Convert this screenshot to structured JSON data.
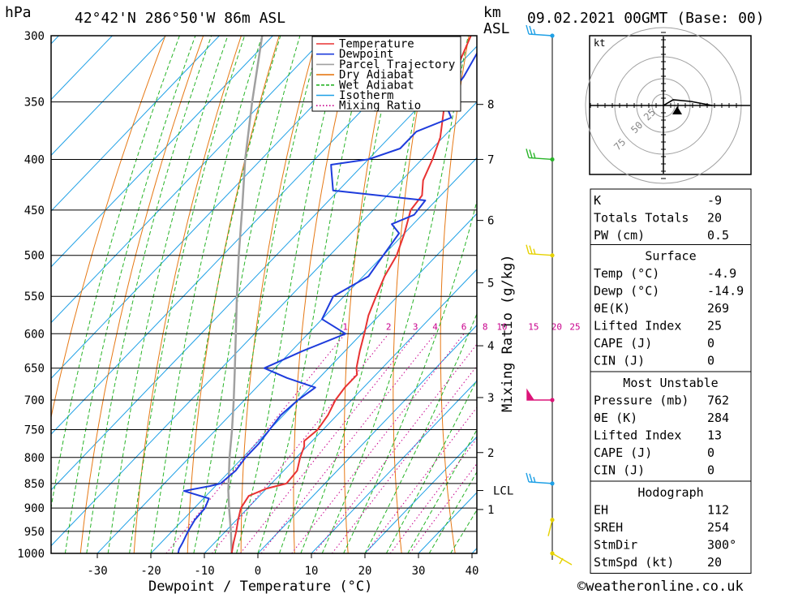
{
  "header": {
    "left_unit": "hPa",
    "location": "42°42'N 286°50'W 86m ASL",
    "km_label": "km",
    "asl_label": "ASL",
    "datetime": "09.02.2021 00GMT (Base: 00)"
  },
  "copyright": "©weatheronline.co.uk",
  "chart_data": {
    "type": "skewt",
    "xlabel": "Dewpoint / Temperature (°C)",
    "ylabel_right": "Mixing Ratio (g/kg)",
    "x_ticks": [
      -30,
      -20,
      -10,
      0,
      10,
      20,
      30,
      40
    ],
    "x_tick_labels": [
      "-30",
      "-20",
      "-10",
      "0",
      "10",
      "20",
      "30",
      "40"
    ],
    "pressure_levels": [
      300,
      350,
      400,
      450,
      500,
      550,
      600,
      650,
      700,
      750,
      800,
      850,
      900,
      950,
      1000
    ],
    "pressure_labels": [
      "300",
      "350",
      "400",
      "450",
      "500",
      "550",
      "600",
      "650",
      "700",
      "750",
      "800",
      "850",
      "900",
      "950",
      "1000"
    ],
    "height_km": [
      {
        "p": 352,
        "label": "8"
      },
      {
        "p": 400,
        "label": "7"
      },
      {
        "p": 461,
        "label": "6"
      },
      {
        "p": 533,
        "label": "5"
      },
      {
        "p": 617,
        "label": "4"
      },
      {
        "p": 696,
        "label": "3"
      },
      {
        "p": 791,
        "label": "2"
      },
      {
        "p": 864,
        "label": "LCL"
      },
      {
        "p": 903,
        "label": "1"
      }
    ],
    "mixing_ratio_labels": [
      "1",
      "2",
      "3",
      "4",
      "6",
      "8",
      "10",
      "15",
      "20",
      "25"
    ],
    "mixing_ratio_values": [
      1,
      2,
      3,
      4,
      6,
      8,
      10,
      15,
      20,
      25
    ],
    "legend": [
      {
        "name": "Temperature",
        "color": "#e83232",
        "style": "solid"
      },
      {
        "name": "Dewpoint",
        "color": "#1e3cdc",
        "style": "solid"
      },
      {
        "name": "Parcel Trajectory",
        "color": "#a0a0a0",
        "style": "solid"
      },
      {
        "name": "Dry Adiabat",
        "color": "#e67814",
        "style": "solid"
      },
      {
        "name": "Wet Adiabat",
        "color": "#28b428",
        "style": "dashed"
      },
      {
        "name": "Isotherm",
        "color": "#1ea0e6",
        "style": "solid"
      },
      {
        "name": "Mixing Ratio",
        "color": "#c8008c",
        "style": "dotted"
      }
    ],
    "series": [
      {
        "name": "Temperature",
        "points": [
          {
            "p": 1000,
            "t": -4.9
          },
          {
            "p": 975,
            "t": -6.5
          },
          {
            "p": 950,
            "t": -8
          },
          {
            "p": 925,
            "t": -9.7
          },
          {
            "p": 900,
            "t": -11.3
          },
          {
            "p": 875,
            "t": -12
          },
          {
            "p": 860,
            "t": -10
          },
          {
            "p": 850,
            "t": -7.2
          },
          {
            "p": 825,
            "t": -7.5
          },
          {
            "p": 800,
            "t": -9.3
          },
          {
            "p": 780,
            "t": -10.5
          },
          {
            "p": 770,
            "t": -11.5
          },
          {
            "p": 750,
            "t": -11
          },
          {
            "p": 725,
            "t": -11.7
          },
          {
            "p": 700,
            "t": -13
          },
          {
            "p": 680,
            "t": -13.5
          },
          {
            "p": 660,
            "t": -13.5
          },
          {
            "p": 650,
            "t": -14.8
          },
          {
            "p": 625,
            "t": -17.2
          },
          {
            "p": 600,
            "t": -19.5
          },
          {
            "p": 575,
            "t": -22
          },
          {
            "p": 550,
            "t": -24
          },
          {
            "p": 525,
            "t": -26
          },
          {
            "p": 500,
            "t": -27.5
          },
          {
            "p": 475,
            "t": -30
          },
          {
            "p": 450,
            "t": -33
          },
          {
            "p": 435,
            "t": -33.5
          },
          {
            "p": 420,
            "t": -36
          },
          {
            "p": 400,
            "t": -38
          },
          {
            "p": 380,
            "t": -40.5
          },
          {
            "p": 350,
            "t": -46
          },
          {
            "p": 330,
            "t": -49
          },
          {
            "p": 300,
            "t": -53
          }
        ]
      },
      {
        "name": "Dewpoint",
        "points": [
          {
            "p": 1000,
            "t": -14.9
          },
          {
            "p": 990,
            "t": -15.5
          },
          {
            "p": 975,
            "t": -16
          },
          {
            "p": 950,
            "t": -17
          },
          {
            "p": 925,
            "t": -17.8
          },
          {
            "p": 900,
            "t": -18
          },
          {
            "p": 880,
            "t": -19
          },
          {
            "p": 865,
            "t": -25
          },
          {
            "p": 855,
            "t": -21
          },
          {
            "p": 850,
            "t": -19.5
          },
          {
            "p": 825,
            "t": -19
          },
          {
            "p": 800,
            "t": -19.5
          },
          {
            "p": 775,
            "t": -19.5
          },
          {
            "p": 750,
            "t": -20
          },
          {
            "p": 725,
            "t": -20.5
          },
          {
            "p": 700,
            "t": -20
          },
          {
            "p": 680,
            "t": -19
          },
          {
            "p": 665,
            "t": -26
          },
          {
            "p": 650,
            "t": -32
          },
          {
            "p": 625,
            "t": -28
          },
          {
            "p": 600,
            "t": -23
          },
          {
            "p": 580,
            "t": -30
          },
          {
            "p": 550,
            "t": -32
          },
          {
            "p": 525,
            "t": -29
          },
          {
            "p": 500,
            "t": -30
          },
          {
            "p": 475,
            "t": -31
          },
          {
            "p": 465,
            "t": -34
          },
          {
            "p": 455,
            "t": -31.5
          },
          {
            "p": 440,
            "t": -32
          },
          {
            "p": 430,
            "t": -51
          },
          {
            "p": 410,
            "t": -55
          },
          {
            "p": 405,
            "t": -56
          },
          {
            "p": 400,
            "t": -50
          },
          {
            "p": 390,
            "t": -46
          },
          {
            "p": 375,
            "t": -46
          },
          {
            "p": 363,
            "t": -42
          },
          {
            "p": 350,
            "t": -46
          },
          {
            "p": 330,
            "t": -47
          },
          {
            "p": 300,
            "t": -50
          }
        ]
      },
      {
        "name": "Parcel Trajectory",
        "points": [
          {
            "p": 1000,
            "t": -4.9
          },
          {
            "p": 950,
            "t": -9
          },
          {
            "p": 900,
            "t": -13.5
          },
          {
            "p": 864,
            "t": -16.8
          },
          {
            "p": 850,
            "t": -18
          },
          {
            "p": 800,
            "t": -22.5
          },
          {
            "p": 750,
            "t": -27
          },
          {
            "p": 700,
            "t": -32
          },
          {
            "p": 650,
            "t": -37.5
          },
          {
            "p": 600,
            "t": -43.5
          },
          {
            "p": 550,
            "t": -50
          },
          {
            "p": 500,
            "t": -57
          },
          {
            "p": 450,
            "t": -64.5
          },
          {
            "p": 400,
            "t": -73
          },
          {
            "p": 350,
            "t": -82
          },
          {
            "p": 300,
            "t": -92
          }
        ]
      }
    ],
    "wind_barbs": [
      {
        "p": 300,
        "color": "#1ea0e6"
      },
      {
        "p": 400,
        "color": "#28b428"
      },
      {
        "p": 500,
        "color": "#e6d200"
      },
      {
        "p": 700,
        "color": "#dc1478"
      },
      {
        "p": 850,
        "color": "#1ea0e6"
      },
      {
        "p": 925,
        "color": "#e6d200"
      },
      {
        "p": 1000,
        "color": "#e6d200"
      }
    ],
    "hodograph": {
      "unit": "kt",
      "rings": [
        "25",
        "50",
        "75"
      ]
    }
  },
  "indices": {
    "top": [
      {
        "label": "K",
        "value": "-9"
      },
      {
        "label": "Totals Totals",
        "value": "20"
      },
      {
        "label": "PW (cm)",
        "value": "0.5"
      }
    ],
    "surface": {
      "title": "Surface",
      "rows": [
        {
          "label": "Temp (°C)",
          "value": "-4.9"
        },
        {
          "label": "Dewp (°C)",
          "value": "-14.9"
        },
        {
          "label": "θE(K)",
          "value": "269"
        },
        {
          "label": "Lifted Index",
          "value": "25"
        },
        {
          "label": "CAPE (J)",
          "value": "0"
        },
        {
          "label": "CIN (J)",
          "value": "0"
        }
      ]
    },
    "most_unstable": {
      "title": "Most Unstable",
      "rows": [
        {
          "label": "Pressure (mb)",
          "value": "762"
        },
        {
          "label": "θE (K)",
          "value": "284"
        },
        {
          "label": "Lifted Index",
          "value": "13"
        },
        {
          "label": "CAPE (J)",
          "value": "0"
        },
        {
          "label": "CIN (J)",
          "value": "0"
        }
      ]
    },
    "hodograph": {
      "title": "Hodograph",
      "rows": [
        {
          "label": "EH",
          "value": "112"
        },
        {
          "label": "SREH",
          "value": "254"
        },
        {
          "label": "StmDir",
          "value": "300°"
        },
        {
          "label": "StmSpd (kt)",
          "value": "20"
        }
      ]
    }
  }
}
